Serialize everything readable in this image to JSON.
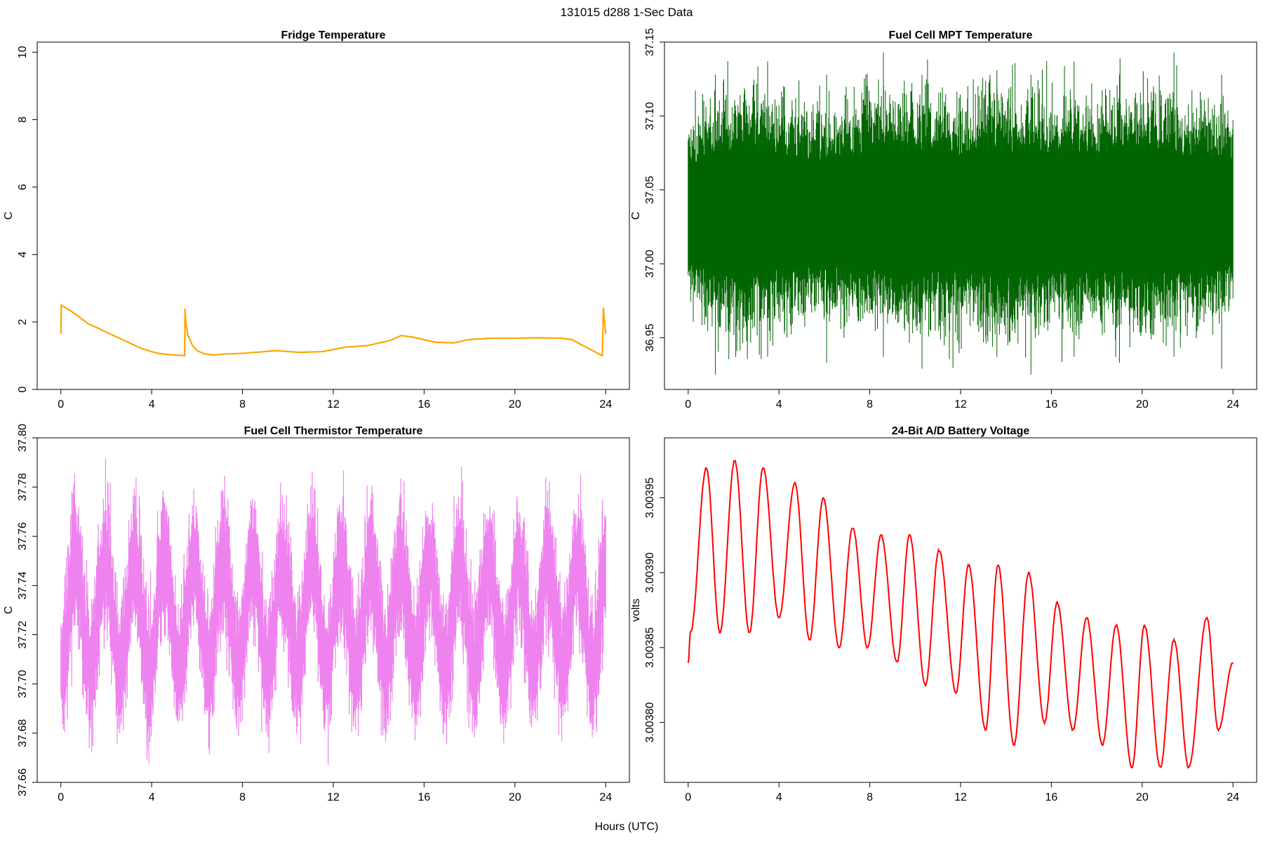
{
  "figure": {
    "title": "131015   d288   1-Sec Data",
    "xlabel": "Hours (UTC)"
  },
  "chart_data": [
    {
      "type": "line",
      "title": "Fridge Temperature",
      "xlabel": "",
      "ylabel": "C",
      "color": "#FFA500",
      "xlim": [
        0,
        24
      ],
      "ylim": [
        0,
        10.3
      ],
      "x_ticks": [
        0,
        4,
        8,
        12,
        16,
        20,
        24
      ],
      "y_ticks": [
        0,
        2,
        4,
        6,
        8,
        10
      ],
      "y_tick_labels": [
        "0",
        "2",
        "4",
        "6",
        "8",
        "10"
      ],
      "series": [
        {
          "name": "Fridge Temperature",
          "x": [
            0,
            0.02,
            0.5,
            1.2,
            2.0,
            2.8,
            3.6,
            4.2,
            4.8,
            5.45,
            5.47,
            5.5,
            5.6,
            5.8,
            6.0,
            6.3,
            6.7,
            7.2,
            8.0,
            9.5,
            10.5,
            11.5,
            12.5,
            13.5,
            14.5,
            15.0,
            15.5,
            16.5,
            17.3,
            18.0,
            19.0,
            20.0,
            21.0,
            22.0,
            22.5,
            23.0,
            23.85,
            23.9,
            23.95,
            24.0
          ],
          "y": [
            1.65,
            2.5,
            2.3,
            1.95,
            1.7,
            1.45,
            1.2,
            1.08,
            1.03,
            1.0,
            2.4,
            2.0,
            1.6,
            1.3,
            1.15,
            1.06,
            1.02,
            1.05,
            1.07,
            1.15,
            1.1,
            1.12,
            1.25,
            1.3,
            1.45,
            1.6,
            1.55,
            1.4,
            1.38,
            1.48,
            1.52,
            1.52,
            1.53,
            1.52,
            1.48,
            1.3,
            1.0,
            2.42,
            2.0,
            1.65
          ]
        }
      ]
    },
    {
      "type": "line",
      "title": "Fuel Cell MPT Temperature",
      "xlabel": "",
      "ylabel": "C",
      "color": "#006400",
      "xlim": [
        0,
        24
      ],
      "ylim": [
        36.915,
        37.15
      ],
      "x_ticks": [
        0,
        4,
        8,
        12,
        16,
        20,
        24
      ],
      "y_ticks": [
        36.95,
        37.0,
        37.05,
        37.1,
        37.15
      ],
      "y_tick_labels": [
        "36.95",
        "37.00",
        "37.05",
        "37.10",
        "37.15"
      ],
      "envelope": {
        "x": [
          0,
          2,
          4,
          6,
          8,
          10,
          12,
          14,
          16,
          18,
          20,
          22,
          24
        ],
        "typical_upper": [
          37.075,
          37.09,
          37.085,
          37.08,
          37.085,
          37.09,
          37.085,
          37.09,
          37.085,
          37.085,
          37.09,
          37.085,
          37.08
        ],
        "typical_lower": [
          36.995,
          36.98,
          36.985,
          36.99,
          36.985,
          36.98,
          36.985,
          36.98,
          36.985,
          36.985,
          36.98,
          36.985,
          36.99
        ],
        "max": 37.143,
        "min": 36.925
      }
    },
    {
      "type": "line",
      "title": "Fuel Cell Thermistor Temperature",
      "xlabel": "",
      "ylabel": "C",
      "color": "#EE82EE",
      "xlim": [
        0,
        24
      ],
      "ylim": [
        37.66,
        37.8
      ],
      "x_ticks": [
        0,
        4,
        8,
        12,
        16,
        20,
        24
      ],
      "y_ticks": [
        37.66,
        37.68,
        37.7,
        37.72,
        37.74,
        37.76,
        37.78,
        37.8
      ],
      "y_tick_labels": [
        "37.66",
        "37.68",
        "37.70",
        "37.72",
        "37.74",
        "37.76",
        "37.78",
        "37.80"
      ],
      "envelope": {
        "mean": 37.728,
        "oscillation_period_hours": 1.3,
        "oscillation_amplitude": 0.022,
        "noise_halfwidth": 0.016,
        "max": 37.795,
        "min": 37.663
      }
    },
    {
      "type": "line",
      "title": "24-Bit A/D Battery Voltage",
      "xlabel": "",
      "ylabel": "volts",
      "color": "#FF0000",
      "xlim": [
        0,
        24
      ],
      "ylim": [
        3.00376,
        3.00399
      ],
      "x_ticks": [
        0,
        4,
        8,
        12,
        16,
        20,
        24
      ],
      "y_ticks": [
        3.0038,
        3.00385,
        3.0039,
        3.00395
      ],
      "y_tick_labels": [
        "3.00380",
        "3.00385",
        "3.00390",
        "3.00395"
      ],
      "series": [
        {
          "name": "Battery Voltage",
          "start": {
            "x": 0,
            "y": 3.00384
          },
          "peaks_x": [
            0.8,
            2.05,
            3.3,
            4.7,
            5.95,
            7.25,
            8.5,
            9.75,
            11.05,
            12.35,
            13.65,
            15.0,
            16.25,
            17.55,
            18.85,
            20.1,
            21.4,
            22.85
          ],
          "peaks_y": [
            3.00397,
            3.003975,
            3.00397,
            3.00396,
            3.00395,
            3.00393,
            3.003925,
            3.003925,
            3.003915,
            3.003905,
            3.003905,
            3.0039,
            3.00388,
            3.00387,
            3.003865,
            3.003865,
            3.003855,
            3.00387
          ],
          "troughs_x": [
            0.1,
            1.4,
            2.7,
            4.0,
            5.35,
            6.65,
            7.9,
            9.2,
            10.45,
            11.8,
            13.1,
            14.35,
            15.7,
            16.95,
            18.25,
            19.55,
            20.8,
            22.05,
            23.35
          ],
          "troughs_y": [
            3.00386,
            3.00386,
            3.00386,
            3.00387,
            3.003855,
            3.00385,
            3.00385,
            3.00384,
            3.003825,
            3.00382,
            3.003795,
            3.003785,
            3.0038,
            3.003795,
            3.003785,
            3.00377,
            3.00377,
            3.00377,
            3.003795
          ],
          "end": {
            "x": 24,
            "y": 3.00384
          }
        }
      ]
    }
  ]
}
